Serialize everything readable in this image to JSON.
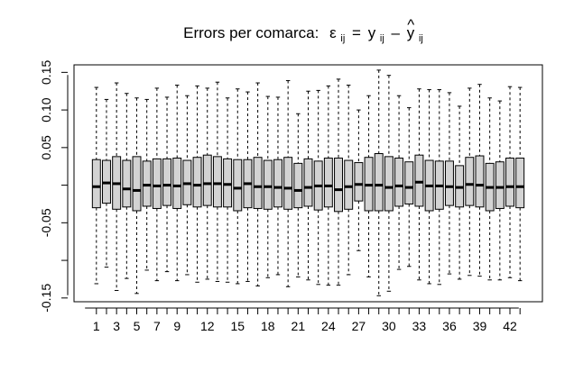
{
  "chart_data": {
    "type": "boxplot",
    "title": {
      "prefix": "Errors per comarca:",
      "lhs_symbol": "ε",
      "lhs_subscript": "ij",
      "equals": "=",
      "y_symbol": "y",
      "y_subscript": "ij",
      "minus": "–",
      "yhat_symbol": "y",
      "yhat_accent": "^",
      "yhat_subscript": "ij"
    },
    "xlabel": "",
    "ylabel": "",
    "ylim": [
      -0.155,
      0.16
    ],
    "yticks": [
      -0.15,
      -0.1,
      -0.05,
      0.0,
      0.05,
      0.1,
      0.15
    ],
    "ytick_labels": [
      "-0.15",
      "",
      "-0.05",
      "",
      "0.05",
      "0.10",
      "0.15"
    ],
    "xticks": [
      1,
      2,
      3,
      4,
      5,
      6,
      7,
      8,
      9,
      10,
      11,
      12,
      13,
      14,
      15,
      16,
      17,
      18,
      19,
      20,
      21,
      22,
      23,
      24,
      25,
      26,
      27,
      28,
      29,
      30,
      31,
      32,
      33,
      34,
      35,
      36,
      37,
      38,
      39,
      40,
      41,
      42,
      43
    ],
    "xtick_labels": [
      "1",
      "",
      "3",
      "",
      "5",
      "",
      "7",
      "",
      "9",
      "",
      "",
      "12",
      "",
      "",
      "15",
      "",
      "",
      "18",
      "",
      "",
      "21",
      "",
      "",
      "24",
      "",
      "",
      "27",
      "",
      "",
      "30",
      "",
      "",
      "33",
      "",
      "",
      "36",
      "",
      "",
      "39",
      "",
      "",
      "42",
      ""
    ],
    "box_fill": "#d3d3d3",
    "stroke": "#000000",
    "boxes": [
      {
        "group": 1,
        "min": -0.131,
        "q1": -0.03,
        "median": -0.002,
        "q3": 0.034,
        "max": 0.13
      },
      {
        "group": 2,
        "min": -0.109,
        "q1": -0.024,
        "median": 0.003,
        "q3": 0.033,
        "max": 0.114
      },
      {
        "group": 3,
        "min": -0.14,
        "q1": -0.032,
        "median": 0.002,
        "q3": 0.038,
        "max": 0.136
      },
      {
        "group": 4,
        "min": -0.124,
        "q1": -0.029,
        "median": -0.005,
        "q3": 0.033,
        "max": 0.122
      },
      {
        "group": 5,
        "min": -0.144,
        "q1": -0.034,
        "median": -0.007,
        "q3": 0.038,
        "max": 0.116
      },
      {
        "group": 6,
        "min": -0.113,
        "q1": -0.028,
        "median": 0.0,
        "q3": 0.032,
        "max": 0.114
      },
      {
        "group": 7,
        "min": -0.127,
        "q1": -0.031,
        "median": -0.001,
        "q3": 0.035,
        "max": 0.129
      },
      {
        "group": 8,
        "min": -0.115,
        "q1": -0.027,
        "median": 0.0,
        "q3": 0.035,
        "max": 0.117
      },
      {
        "group": 9,
        "min": -0.127,
        "q1": -0.031,
        "median": -0.001,
        "q3": 0.036,
        "max": 0.133
      },
      {
        "group": 10,
        "min": -0.119,
        "q1": -0.026,
        "median": 0.002,
        "q3": 0.033,
        "max": 0.119
      },
      {
        "group": 11,
        "min": -0.129,
        "q1": -0.029,
        "median": 0.0,
        "q3": 0.037,
        "max": 0.132
      },
      {
        "group": 12,
        "min": -0.125,
        "q1": -0.027,
        "median": 0.002,
        "q3": 0.04,
        "max": 0.129
      },
      {
        "group": 13,
        "min": -0.128,
        "q1": -0.029,
        "median": 0.002,
        "q3": 0.038,
        "max": 0.137
      },
      {
        "group": 14,
        "min": -0.129,
        "q1": -0.029,
        "median": 0.001,
        "q3": 0.035,
        "max": 0.116
      },
      {
        "group": 15,
        "min": -0.131,
        "q1": -0.034,
        "median": -0.004,
        "q3": 0.034,
        "max": 0.128
      },
      {
        "group": 16,
        "min": -0.128,
        "q1": -0.03,
        "median": 0.002,
        "q3": 0.034,
        "max": 0.124
      },
      {
        "group": 17,
        "min": -0.134,
        "q1": -0.031,
        "median": -0.002,
        "q3": 0.037,
        "max": 0.136
      },
      {
        "group": 18,
        "min": -0.123,
        "q1": -0.032,
        "median": -0.002,
        "q3": 0.033,
        "max": 0.118
      },
      {
        "group": 19,
        "min": -0.119,
        "q1": -0.029,
        "median": -0.003,
        "q3": 0.034,
        "max": 0.117
      },
      {
        "group": 20,
        "min": -0.135,
        "q1": -0.032,
        "median": -0.004,
        "q3": 0.037,
        "max": 0.139
      },
      {
        "group": 21,
        "min": -0.122,
        "q1": -0.03,
        "median": -0.007,
        "q3": 0.029,
        "max": 0.095
      },
      {
        "group": 22,
        "min": -0.126,
        "q1": -0.028,
        "median": -0.003,
        "q3": 0.035,
        "max": 0.125
      },
      {
        "group": 23,
        "min": -0.132,
        "q1": -0.033,
        "median": -0.001,
        "q3": 0.032,
        "max": 0.126
      },
      {
        "group": 24,
        "min": -0.133,
        "q1": -0.029,
        "median": -0.001,
        "q3": 0.036,
        "max": 0.132
      },
      {
        "group": 25,
        "min": -0.133,
        "q1": -0.035,
        "median": -0.006,
        "q3": 0.036,
        "max": 0.141
      },
      {
        "group": 26,
        "min": -0.119,
        "q1": -0.032,
        "median": -0.002,
        "q3": 0.033,
        "max": 0.133
      },
      {
        "group": 27,
        "min": -0.087,
        "q1": -0.021,
        "median": 0.001,
        "q3": 0.03,
        "max": 0.1
      },
      {
        "group": 28,
        "min": -0.122,
        "q1": -0.034,
        "median": 0.0,
        "q3": 0.037,
        "max": 0.119
      },
      {
        "group": 29,
        "min": -0.147,
        "q1": -0.034,
        "median": 0.0,
        "q3": 0.042,
        "max": 0.153
      },
      {
        "group": 30,
        "min": -0.141,
        "q1": -0.034,
        "median": -0.003,
        "q3": 0.038,
        "max": 0.146
      },
      {
        "group": 31,
        "min": -0.112,
        "q1": -0.028,
        "median": -0.001,
        "q3": 0.036,
        "max": 0.119
      },
      {
        "group": 32,
        "min": -0.108,
        "q1": -0.025,
        "median": -0.003,
        "q3": 0.031,
        "max": 0.103
      },
      {
        "group": 33,
        "min": -0.126,
        "q1": -0.028,
        "median": 0.004,
        "q3": 0.04,
        "max": 0.128
      },
      {
        "group": 34,
        "min": -0.131,
        "q1": -0.034,
        "median": -0.001,
        "q3": 0.033,
        "max": 0.127
      },
      {
        "group": 35,
        "min": -0.132,
        "q1": -0.032,
        "median": -0.001,
        "q3": 0.032,
        "max": 0.127
      },
      {
        "group": 36,
        "min": -0.118,
        "q1": -0.027,
        "median": -0.002,
        "q3": 0.032,
        "max": 0.123
      },
      {
        "group": 37,
        "min": -0.125,
        "q1": -0.029,
        "median": -0.003,
        "q3": 0.026,
        "max": 0.105
      },
      {
        "group": 38,
        "min": -0.12,
        "q1": -0.027,
        "median": 0.001,
        "q3": 0.037,
        "max": 0.129
      },
      {
        "group": 39,
        "min": -0.121,
        "q1": -0.029,
        "median": 0.0,
        "q3": 0.039,
        "max": 0.134
      },
      {
        "group": 40,
        "min": -0.126,
        "q1": -0.034,
        "median": -0.003,
        "q3": 0.029,
        "max": 0.116
      },
      {
        "group": 41,
        "min": -0.126,
        "q1": -0.031,
        "median": -0.003,
        "q3": 0.031,
        "max": 0.112
      },
      {
        "group": 42,
        "min": -0.123,
        "q1": -0.028,
        "median": -0.002,
        "q3": 0.036,
        "max": 0.131
      },
      {
        "group": 43,
        "min": -0.127,
        "q1": -0.03,
        "median": -0.002,
        "q3": 0.036,
        "max": 0.13
      }
    ]
  }
}
